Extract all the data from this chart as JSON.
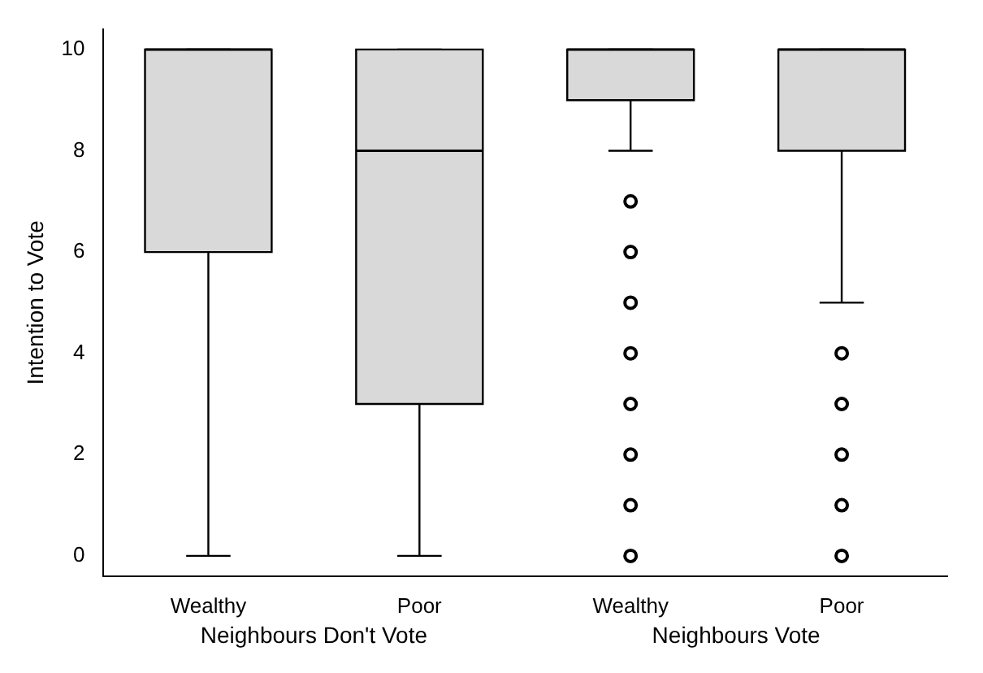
{
  "chart_data": {
    "type": "box",
    "ylabel": "Intention to Vote",
    "categories": [
      "Wealthy",
      "Poor",
      "Wealthy",
      "Poor"
    ],
    "boxes": [
      {
        "low": 0,
        "q1": 6,
        "median": 10,
        "q3": 10,
        "high": 10
      },
      {
        "low": 0,
        "q1": 3,
        "median": 8,
        "q3": 10,
        "high": 10
      },
      {
        "low": 8,
        "q1": 9,
        "median": 10,
        "q3": 10,
        "high": 10,
        "outliers": [
          0,
          1,
          2,
          3,
          4,
          5,
          6,
          7
        ]
      },
      {
        "low": 5,
        "q1": 8,
        "median": 10,
        "q3": 10,
        "high": 10,
        "outliers": [
          0,
          1,
          2,
          3,
          4
        ]
      }
    ],
    "color": "#d9d9d9",
    "marker": "circle",
    "grid": false,
    "legend": false,
    "ylim": [
      -0.4,
      10.4
    ],
    "yticks": [
      0,
      2,
      4,
      6,
      8,
      10
    ],
    "annotations": [
      "Neighbours Don't Vote",
      "Neighbours Vote"
    ]
  }
}
